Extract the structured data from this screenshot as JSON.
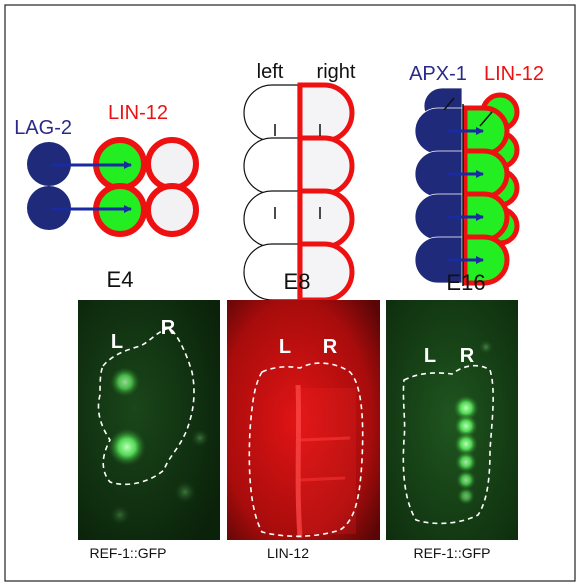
{
  "panels": {
    "e4": {
      "stage": "E4",
      "signal_label": "LAG-2",
      "receptor_label": "LIN-12"
    },
    "e8": {
      "stage": "E8",
      "left_label": "left",
      "right_label": "right"
    },
    "e16": {
      "stage": "E16",
      "signal_label": "APX-1",
      "receptor_label": "LIN-12"
    }
  },
  "micrographs": [
    {
      "left_mark": "L",
      "right_mark": "R",
      "caption": "REF-1::GFP"
    },
    {
      "left_mark": "L",
      "right_mark": "R",
      "caption": "LIN-12"
    },
    {
      "left_mark": "L",
      "right_mark": "R",
      "caption": "REF-1::GFP"
    }
  ],
  "colors": {
    "blue_cell": "#1f2a7a",
    "label_blue": "#2a2a8a",
    "red_outline": "#ee1111",
    "green_cell": "#22ee22",
    "arrow": "#1a2aa0",
    "gfp_background": "#0a2a0a",
    "lin12_background": "#7a0a0a"
  }
}
